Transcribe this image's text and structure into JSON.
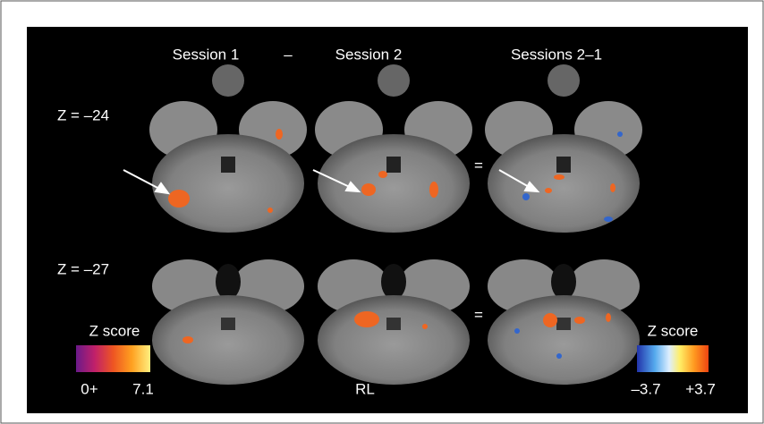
{
  "header": {
    "col1": "Session 1",
    "minus": "–",
    "col2": "Session 2",
    "col3": "Sessions 2–1"
  },
  "rows": [
    {
      "label": "Z = –24",
      "equals": "="
    },
    {
      "label": "Z = –27",
      "equals": "="
    }
  ],
  "left_colorbar": {
    "title": "Z score",
    "min_label": "0+",
    "max_label": "7.1"
  },
  "right_colorbar": {
    "title": "Z score",
    "min_label": "–3.7",
    "max_label": "+3.7"
  },
  "orientation": "RL"
}
